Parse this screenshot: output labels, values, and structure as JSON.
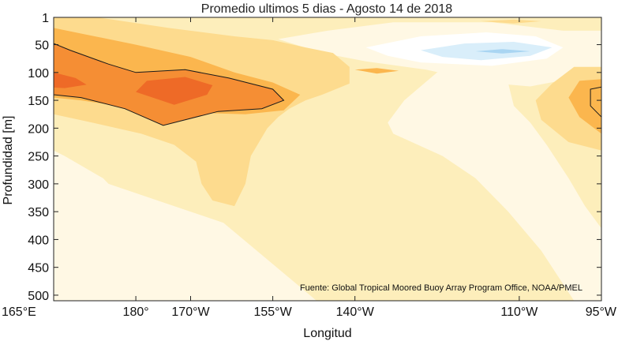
{
  "chart_data": {
    "type": "heatmap",
    "title": "Promedio ultimos 5 dias - Agosto 14 de 2018",
    "xlabel": "Longitud",
    "ylabel": "Profundidad [m]",
    "source": "Fuente: Global Tropical Moored Buoy Array Program Office, NOAA/PMEL",
    "x_ticks": [
      {
        "value": 165,
        "label": "165°E"
      },
      {
        "value": 180,
        "label": "180°"
      },
      {
        "value": 190,
        "label": "170°W"
      },
      {
        "value": 205,
        "label": "155°W"
      },
      {
        "value": 220,
        "label": "140°W"
      },
      {
        "value": 250,
        "label": "110°W"
      },
      {
        "value": 265,
        "label": "95°W"
      }
    ],
    "y_ticks": [
      {
        "value": 1,
        "label": "1"
      },
      {
        "value": 50,
        "label": "50"
      },
      {
        "value": 100,
        "label": "100"
      },
      {
        "value": 150,
        "label": "150"
      },
      {
        "value": 200,
        "label": "200"
      },
      {
        "value": 250,
        "label": "250"
      },
      {
        "value": 300,
        "label": "300"
      },
      {
        "value": 350,
        "label": "350"
      },
      {
        "value": 400,
        "label": "400"
      },
      {
        "value": 450,
        "label": "450"
      },
      {
        "value": 500,
        "label": "500"
      }
    ],
    "xlim": [
      165,
      265
    ],
    "ylim": [
      1,
      510
    ],
    "colors": {
      "level_1": "#fff8e4",
      "level_2": "#fdeebb",
      "level_3": "#fddb8e",
      "level_4": "#fbb64e",
      "level_5": "#f58e34",
      "level_6": "#ee6a27",
      "cool_1": "#ffffff",
      "cool_2": "#d9eefa",
      "cool_3": "#a9d5f2",
      "contour": "#1a1a1a"
    },
    "regions": [
      {
        "level": "level_2",
        "points": [
          [
            165,
            1
          ],
          [
            265,
            1
          ],
          [
            265,
            510
          ],
          [
            165,
            510
          ]
        ]
      },
      {
        "level": "level_1",
        "points": [
          [
            165,
            240
          ],
          [
            167,
            250
          ],
          [
            174,
            290
          ],
          [
            176,
            310
          ],
          [
            172,
            360
          ],
          [
            165,
            420
          ]
        ]
      },
      {
        "level": "level_1",
        "points": [
          [
            165,
            340
          ],
          [
            175,
            300
          ],
          [
            196,
            370
          ],
          [
            213,
            510
          ],
          [
            165,
            510
          ]
        ]
      },
      {
        "level": "level_1",
        "points": [
          [
            227,
            210
          ],
          [
            236,
            250
          ],
          [
            242,
            290
          ],
          [
            248,
            350
          ],
          [
            254,
            420
          ],
          [
            260,
            510
          ],
          [
            265,
            510
          ],
          [
            265,
            380
          ],
          [
            262,
            340
          ],
          [
            259,
            290
          ],
          [
            255,
            230
          ],
          [
            252,
            190
          ],
          [
            249,
            160
          ],
          [
            248,
            120
          ],
          [
            246,
            80
          ],
          [
            235,
            100
          ],
          [
            229,
            150
          ],
          [
            226,
            190
          ]
        ]
      },
      {
        "level": "level_1",
        "points": [
          [
            175,
            510
          ],
          [
            177,
            485
          ],
          [
            183,
            465
          ],
          [
            189,
            470
          ],
          [
            192,
            510
          ]
        ]
      },
      {
        "level": "level_1",
        "points": [
          [
            215,
            25
          ],
          [
            227,
            10
          ],
          [
            245,
            10
          ],
          [
            258,
            25
          ],
          [
            265,
            25
          ],
          [
            265,
            110
          ],
          [
            260,
            110
          ],
          [
            252,
            125
          ],
          [
            246,
            120
          ],
          [
            240,
            110
          ],
          [
            233,
            95
          ],
          [
            222,
            80
          ],
          [
            214,
            65
          ],
          [
            206,
            40
          ]
        ]
      },
      {
        "level": "level_3",
        "points": [
          [
            165,
            1
          ],
          [
            173,
            1
          ],
          [
            186,
            20
          ],
          [
            198,
            35
          ],
          [
            205,
            42
          ],
          [
            211,
            55
          ],
          [
            216,
            65
          ],
          [
            219,
            90
          ],
          [
            219,
            120
          ],
          [
            214,
            140
          ],
          [
            211,
            150
          ],
          [
            208,
            165
          ],
          [
            206,
            180
          ],
          [
            204,
            200
          ],
          [
            201,
            250
          ],
          [
            200,
            300
          ],
          [
            198,
            340
          ],
          [
            194,
            330
          ],
          [
            192,
            300
          ],
          [
            191,
            260
          ],
          [
            187,
            230
          ],
          [
            181,
            210
          ],
          [
            172,
            190
          ],
          [
            165,
            175
          ]
        ]
      },
      {
        "level": "level_3",
        "points": [
          [
            260,
            90
          ],
          [
            265,
            90
          ],
          [
            265,
            240
          ],
          [
            259,
            225
          ],
          [
            254,
            185
          ],
          [
            253,
            150
          ],
          [
            256,
            120
          ]
        ]
      },
      {
        "level": "level_3",
        "points": [
          [
            243,
            8
          ],
          [
            249,
            5
          ],
          [
            254,
            8
          ],
          [
            249,
            12
          ]
        ]
      },
      {
        "level": "level_4",
        "points": [
          [
            165,
            20
          ],
          [
            170,
            30
          ],
          [
            180,
            50
          ],
          [
            190,
            72
          ],
          [
            198,
            100
          ],
          [
            205,
            118
          ],
          [
            210,
            140
          ],
          [
            207,
            168
          ],
          [
            200,
            175
          ],
          [
            190,
            172
          ],
          [
            180,
            165
          ],
          [
            170,
            150
          ],
          [
            165,
            145
          ]
        ]
      },
      {
        "level": "level_4",
        "points": [
          [
            220,
            95
          ],
          [
            224,
            92
          ],
          [
            228,
            97
          ],
          [
            224,
            102
          ]
        ]
      },
      {
        "level": "level_4",
        "points": [
          [
            261,
            115
          ],
          [
            265,
            112
          ],
          [
            265,
            210
          ],
          [
            261,
            180
          ],
          [
            259,
            145
          ]
        ]
      },
      {
        "level": "level_5",
        "points": [
          [
            165,
            48
          ],
          [
            168,
            60
          ],
          [
            175,
            85
          ],
          [
            180,
            100
          ],
          [
            189,
            95
          ],
          [
            197,
            110
          ],
          [
            205,
            130
          ],
          [
            207,
            150
          ],
          [
            203,
            165
          ],
          [
            195,
            170
          ],
          [
            185,
            195
          ],
          [
            178,
            165
          ],
          [
            170,
            145
          ],
          [
            165,
            140
          ]
        ]
      },
      {
        "level": "level_6",
        "points": [
          [
            165,
            100
          ],
          [
            169,
            110
          ],
          [
            171,
            122
          ],
          [
            167,
            128
          ],
          [
            165,
            127
          ]
        ]
      },
      {
        "level": "level_6",
        "points": [
          [
            182,
            115
          ],
          [
            189,
            108
          ],
          [
            194,
            123
          ],
          [
            193,
            140
          ],
          [
            187,
            158
          ],
          [
            180,
            135
          ]
        ]
      },
      {
        "level": "cool_1",
        "points": [
          [
            222,
            55
          ],
          [
            232,
            35
          ],
          [
            244,
            28
          ],
          [
            253,
            35
          ],
          [
            258,
            55
          ],
          [
            255,
            75
          ],
          [
            245,
            88
          ],
          [
            232,
            82
          ],
          [
            226,
            70
          ]
        ]
      },
      {
        "level": "cool_2",
        "points": [
          [
            232,
            60
          ],
          [
            240,
            48
          ],
          [
            249,
            45
          ],
          [
            256,
            55
          ],
          [
            252,
            70
          ],
          [
            243,
            78
          ],
          [
            236,
            72
          ]
        ]
      },
      {
        "level": "cool_3",
        "points": [
          [
            242,
            62
          ],
          [
            247,
            58
          ],
          [
            252,
            62
          ],
          [
            247,
            66
          ]
        ]
      }
    ],
    "contours": [
      [
        [
          165,
          48
        ],
        [
          168,
          60
        ],
        [
          175,
          85
        ],
        [
          180,
          100
        ],
        [
          189,
          95
        ],
        [
          197,
          110
        ],
        [
          205,
          130
        ],
        [
          207,
          150
        ],
        [
          203,
          165
        ],
        [
          195,
          170
        ],
        [
          185,
          195
        ],
        [
          178,
          165
        ],
        [
          170,
          145
        ],
        [
          165,
          140
        ]
      ],
      [
        [
          263,
          130
        ],
        [
          265,
          126
        ],
        [
          265,
          180
        ],
        [
          263,
          160
        ]
      ]
    ]
  }
}
